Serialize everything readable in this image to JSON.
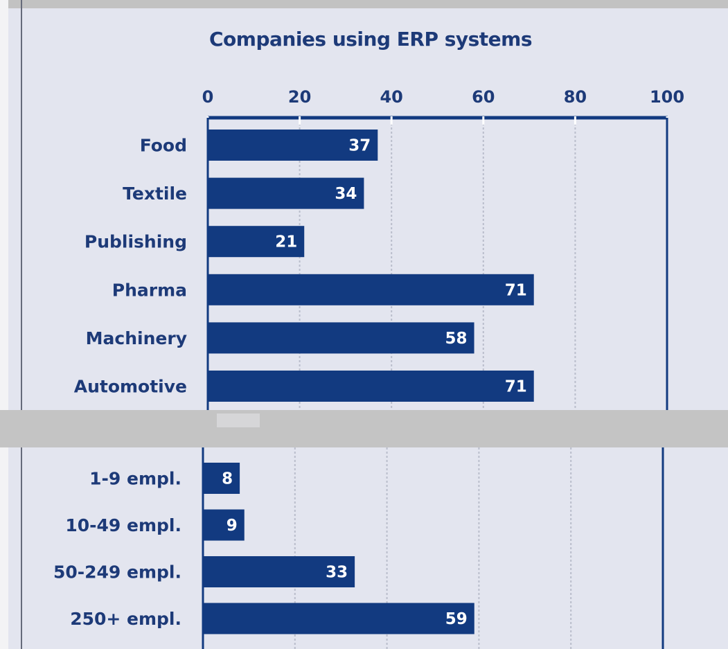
{
  "colors": {
    "bar": "#123a80",
    "text": "#1d3a78",
    "panel_bg": "#e3e5ef",
    "frame": "#123a80",
    "grid": "#b9bdcb",
    "separator": "#c4c4c4"
  },
  "chart_data": [
    {
      "type": "bar",
      "orientation": "horizontal",
      "title": "Companies using ERP systems",
      "xlim": [
        0,
        100
      ],
      "ticks": [
        "0",
        "20",
        "40",
        "60",
        "80",
        "100"
      ],
      "tick_values": [
        0,
        20,
        40,
        60,
        80,
        100
      ],
      "grid": true,
      "categories": [
        "Food",
        "Textile",
        "Publishing",
        "Pharma",
        "Machinery",
        "Automotive"
      ],
      "values": [
        37,
        34,
        21,
        71,
        58,
        71
      ],
      "value_labels": [
        "37",
        "34",
        "21",
        "71",
        "58",
        "71"
      ]
    },
    {
      "type": "bar",
      "orientation": "horizontal",
      "xlim": [
        0,
        100
      ],
      "grid": true,
      "categories": [
        "1-9 empl.",
        "10-49 empl.",
        "50-249 empl.",
        "250+ empl."
      ],
      "values": [
        8,
        9,
        33,
        59
      ],
      "value_labels": [
        "8",
        "9",
        "33",
        "59"
      ]
    }
  ]
}
